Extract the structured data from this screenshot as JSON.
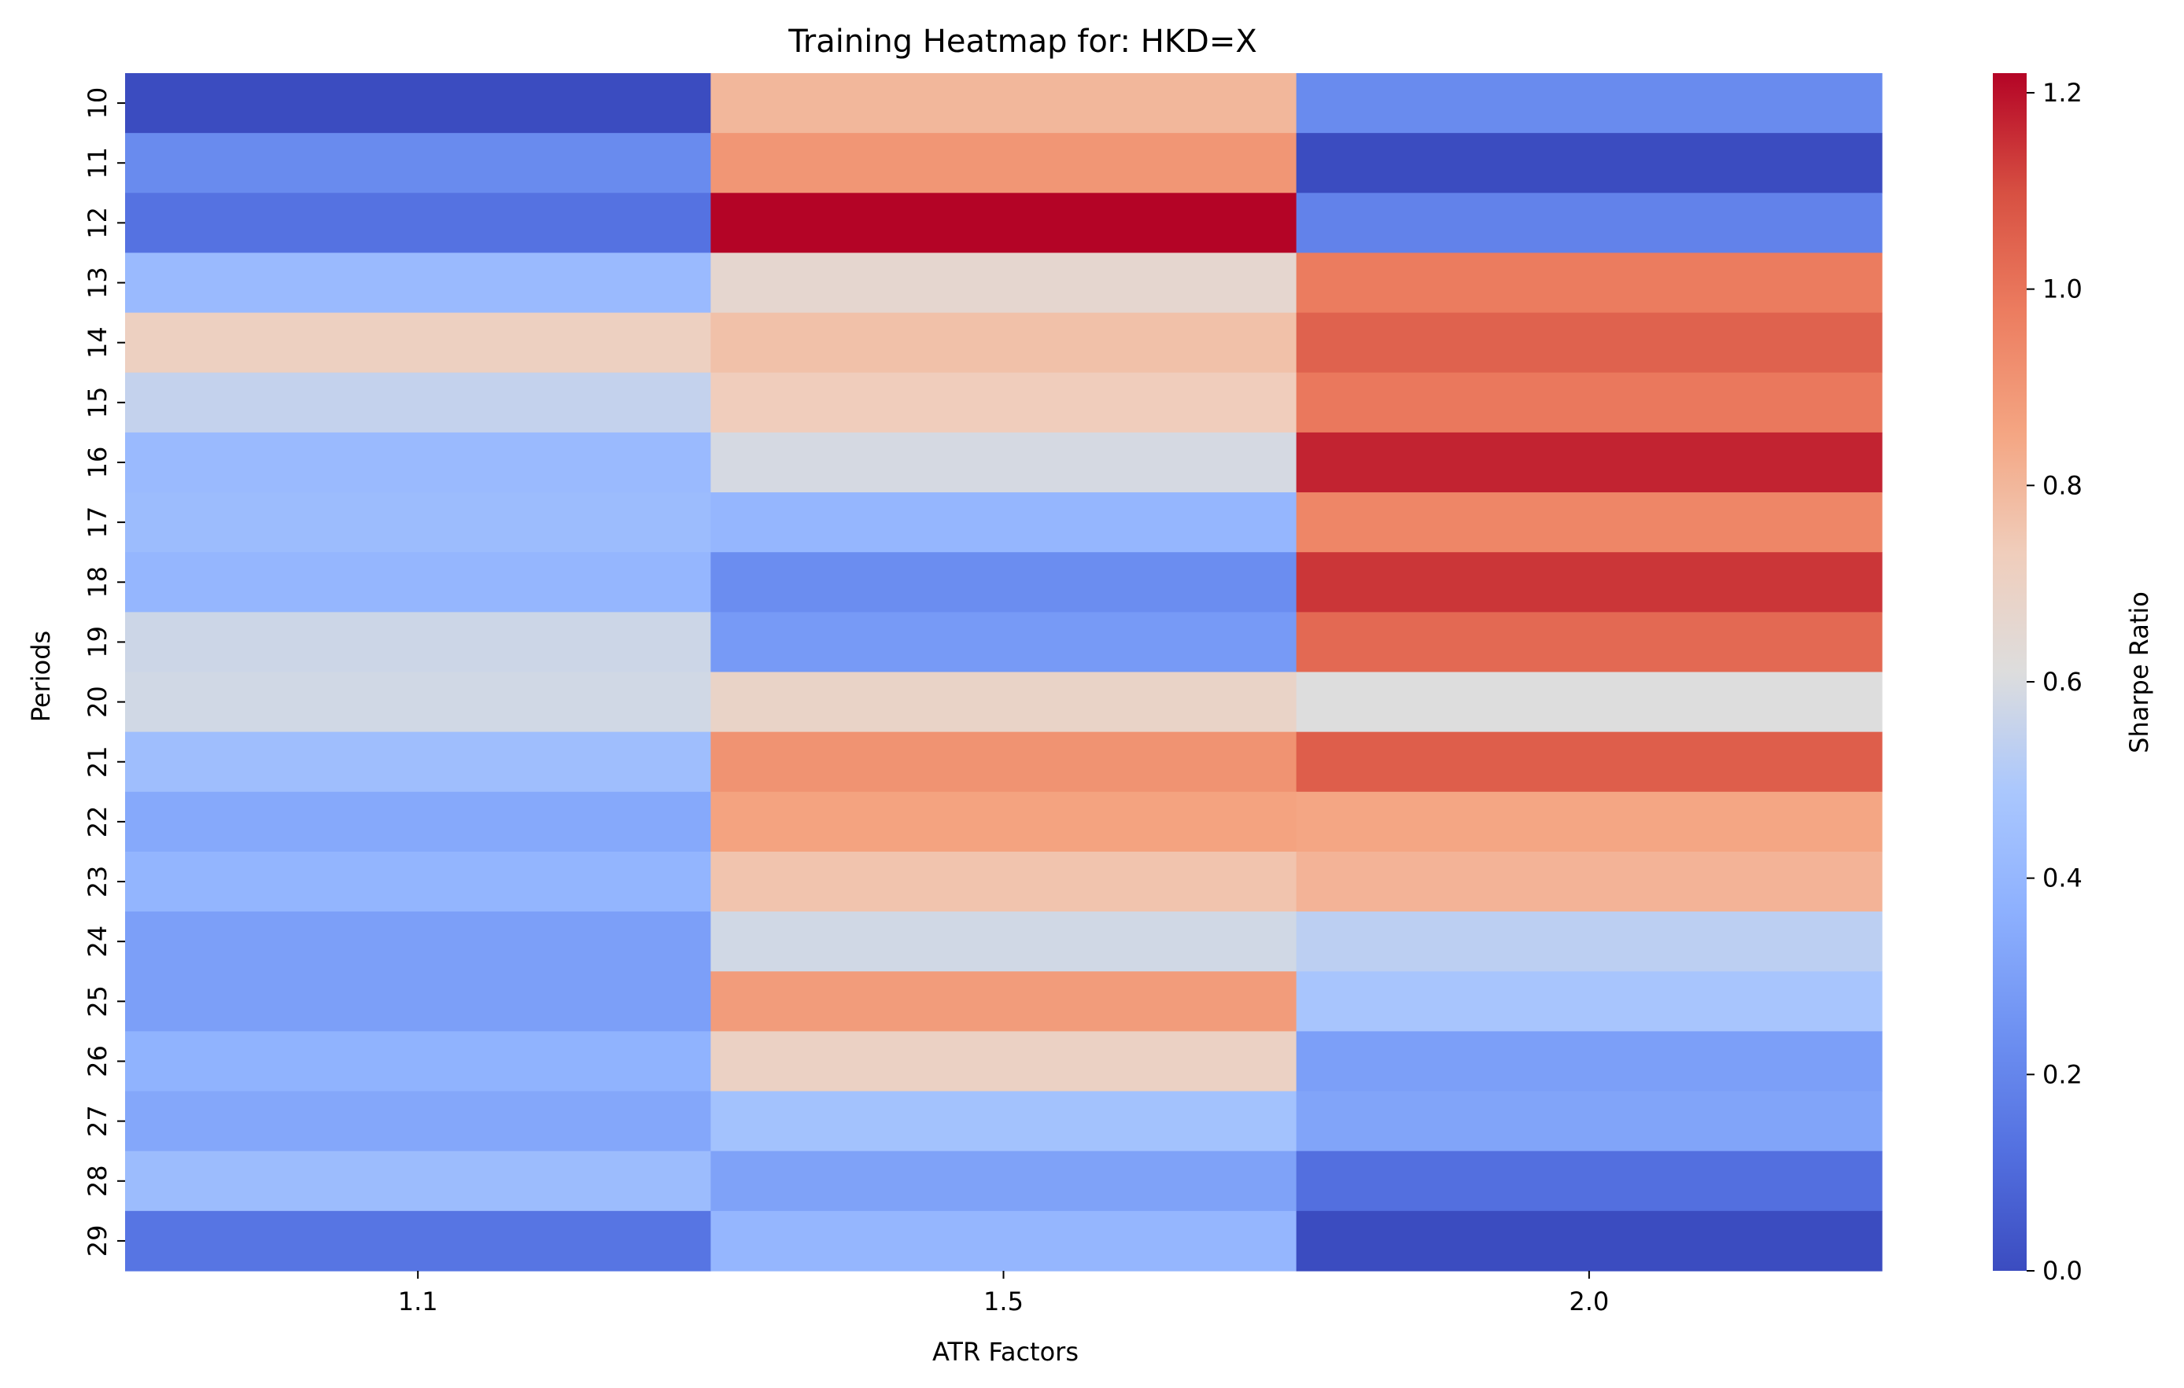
{
  "chart_data": {
    "type": "heatmap",
    "title": "Training Heatmap for: HKD=X",
    "xlabel": "ATR Factors",
    "ylabel": "Periods",
    "colorbar_label": "Sharpe Ratio",
    "colormap": "coolwarm",
    "x_categories": [
      "1.1",
      "1.5",
      "2.0"
    ],
    "y_categories": [
      "10",
      "11",
      "12",
      "13",
      "14",
      "15",
      "16",
      "17",
      "18",
      "19",
      "20",
      "21",
      "22",
      "23",
      "24",
      "25",
      "26",
      "27",
      "28",
      "29"
    ],
    "values": [
      [
        0.0,
        0.8,
        0.22
      ],
      [
        0.22,
        0.9,
        0.0
      ],
      [
        0.13,
        1.22,
        0.19
      ],
      [
        0.42,
        0.66,
        0.98
      ],
      [
        0.71,
        0.77,
        1.05
      ],
      [
        0.55,
        0.73,
        0.99
      ],
      [
        0.42,
        0.59,
        1.17
      ],
      [
        0.43,
        0.4,
        0.95
      ],
      [
        0.4,
        0.23,
        1.14
      ],
      [
        0.57,
        0.28,
        1.03
      ],
      [
        0.58,
        0.69,
        0.61
      ],
      [
        0.44,
        0.91,
        1.06
      ],
      [
        0.34,
        0.86,
        0.85
      ],
      [
        0.39,
        0.76,
        0.81
      ],
      [
        0.3,
        0.58,
        0.53
      ],
      [
        0.3,
        0.88,
        0.48
      ],
      [
        0.38,
        0.7,
        0.3
      ],
      [
        0.33,
        0.46,
        0.32
      ],
      [
        0.43,
        0.31,
        0.12
      ],
      [
        0.14,
        0.4,
        0.0
      ]
    ],
    "vmin": 0.0,
    "vmax": 1.22,
    "colorbar_ticks": [
      "0.0",
      "0.2",
      "0.4",
      "0.6",
      "0.8",
      "1.0",
      "1.2"
    ],
    "colorbar_tick_values": [
      0.0,
      0.2,
      0.4,
      0.6,
      0.8,
      1.0,
      1.2
    ],
    "grid": false
  }
}
